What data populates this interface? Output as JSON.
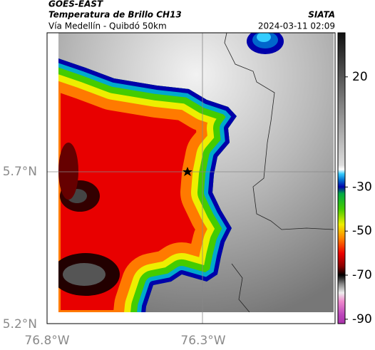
{
  "header": {
    "source": "GOES-EAST",
    "title": "Temperatura de Brillo CH13",
    "org": "SIATA",
    "subtitle": "Vía Medellín - Quibdó 50km",
    "timestamp": "2024-03-11 02:09"
  },
  "map": {
    "x_labels": [
      "76.8°W",
      "76.3°W"
    ],
    "y_labels": [
      "5.7°N",
      "5.2°N"
    ]
  },
  "colorbar": {
    "lim": [
      -92,
      40
    ],
    "ticks": [
      20,
      -30,
      -50,
      -70,
      -90
    ]
  }
}
